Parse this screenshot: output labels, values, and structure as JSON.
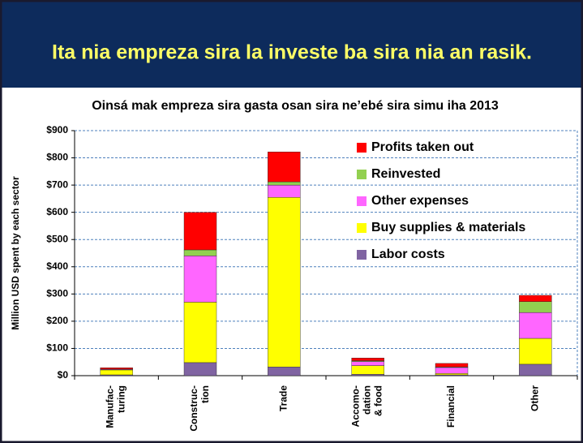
{
  "header": {
    "title": "Ita nia empreza sira la investe ba sira nia an rasik."
  },
  "chart_data": {
    "type": "stacked_bar",
    "title": "Oinsá mak empreza sira gasta osan sira ne’ebé sira simu iha 2013",
    "y_label": "Million USD spent by each sector",
    "categories": [
      [
        "Manufac-",
        "turing"
      ],
      [
        "Construc-",
        "tion"
      ],
      [
        "Trade"
      ],
      [
        "Accomo-",
        "dation",
        "& food"
      ],
      [
        "Financial"
      ],
      [
        "Other"
      ]
    ],
    "series": [
      {
        "name": "Labor costs",
        "color": "#8064a2",
        "values": [
          3,
          48,
          32,
          5,
          3,
          42
        ]
      },
      {
        "name": "Buy supplies & materials",
        "color": "#ffff00",
        "values": [
          18,
          222,
          623,
          32,
          5,
          95
        ]
      },
      {
        "name": "Other expenses",
        "color": "#ff66ff",
        "values": [
          2,
          170,
          45,
          15,
          22,
          95
        ]
      },
      {
        "name": "Reinvested",
        "color": "#92d050",
        "values": [
          1,
          22,
          12,
          3,
          2,
          40
        ]
      },
      {
        "name": "Profits taken out",
        "color": "#ff0000",
        "values": [
          5,
          138,
          110,
          10,
          13,
          23
        ]
      }
    ],
    "ylim": [
      0,
      900
    ],
    "yticks": [
      {
        "value": 0,
        "label": "$0"
      },
      {
        "value": 100,
        "label": "$100"
      },
      {
        "value": 200,
        "label": "$200"
      },
      {
        "value": 300,
        "label": "$300"
      },
      {
        "value": 400,
        "label": "$400"
      },
      {
        "value": 500,
        "label": "$500"
      },
      {
        "value": 600,
        "label": "$600"
      },
      {
        "value": 700,
        "label": "$700"
      },
      {
        "value": 800,
        "label": "$800"
      },
      {
        "value": 900,
        "label": "$900"
      }
    ],
    "grid": true,
    "legend": "top-right"
  }
}
